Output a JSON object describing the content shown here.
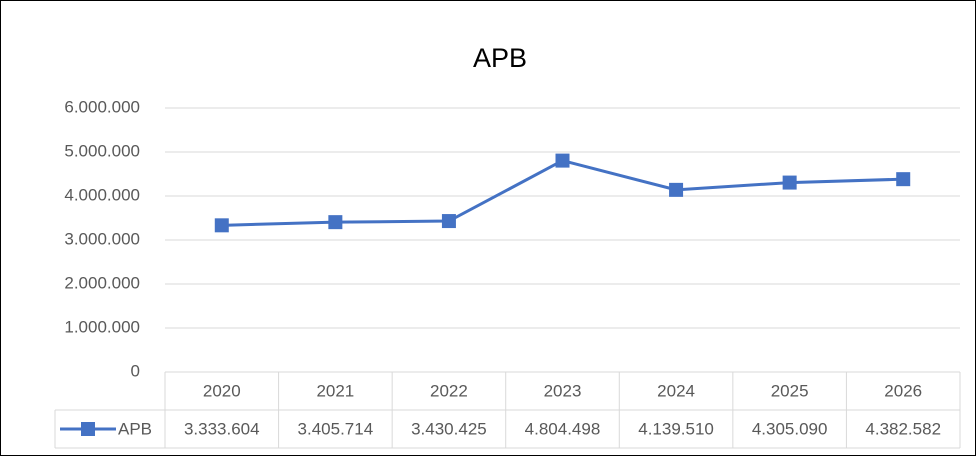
{
  "chart_data": {
    "type": "line",
    "title": "APB",
    "categories": [
      "2020",
      "2021",
      "2022",
      "2023",
      "2024",
      "2025",
      "2026"
    ],
    "series": [
      {
        "name": "APB",
        "color": "#4472c4",
        "values": [
          3333604,
          3405714,
          3430425,
          4804498,
          4139510,
          4305090,
          4382582
        ],
        "value_labels": [
          "3.333.604",
          "3.405.714",
          "3.430.425",
          "4.804.498",
          "4.139.510",
          "4.305.090",
          "4.382.582"
        ]
      }
    ],
    "ylim": [
      0,
      6000000
    ],
    "yticks": [
      0,
      {
        "value": 1000000,
        "label": "1.000.000"
      },
      {
        "value": 2000000,
        "label": "2.000.000"
      },
      {
        "value": 3000000,
        "label": "3.000.000"
      },
      {
        "value": 4000000,
        "label": "4.000.000"
      },
      {
        "value": 5000000,
        "label": "5.000.000"
      },
      {
        "value": 6000000,
        "label": "6.000.000"
      }
    ],
    "grid": true,
    "data_table": true
  }
}
